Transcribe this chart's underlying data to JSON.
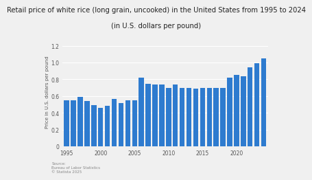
{
  "years": [
    1995,
    1996,
    1997,
    1998,
    1999,
    2000,
    2001,
    2002,
    2003,
    2004,
    2005,
    2006,
    2007,
    2008,
    2009,
    2010,
    2011,
    2012,
    2013,
    2014,
    2015,
    2016,
    2017,
    2018,
    2019,
    2020,
    2021,
    2022,
    2023,
    2024
  ],
  "values": [
    0.55,
    0.55,
    0.59,
    0.54,
    0.49,
    0.46,
    0.48,
    0.57,
    0.52,
    0.55,
    0.55,
    0.82,
    0.75,
    0.74,
    0.74,
    0.7,
    0.74,
    0.7,
    0.7,
    0.69,
    0.7,
    0.7,
    0.7,
    0.7,
    0.82,
    0.85,
    0.84,
    0.94,
    0.99,
    1.05
  ],
  "bar_color": "#2e7bcf",
  "title_line1": "Retail price of white rice (long grain, uncooked) in the United States from 1995 to 2024",
  "title_line2": "(in U.S. dollars per pound)",
  "ylabel": "Price in U.S. dollars per pound",
  "ylim": [
    0,
    1.3
  ],
  "yticks": [
    0,
    0.2,
    0.4,
    0.6,
    0.8,
    1.0,
    1.2
  ],
  "bg_color": "#f0f0f0",
  "plot_bg_color": "#f0f0f0",
  "source_text": "Source:\nBureau of Labor Statistics\n© Statista 2025",
  "title_fontsize": 7.2,
  "ylabel_fontsize": 5.0,
  "tick_fontsize": 5.5
}
